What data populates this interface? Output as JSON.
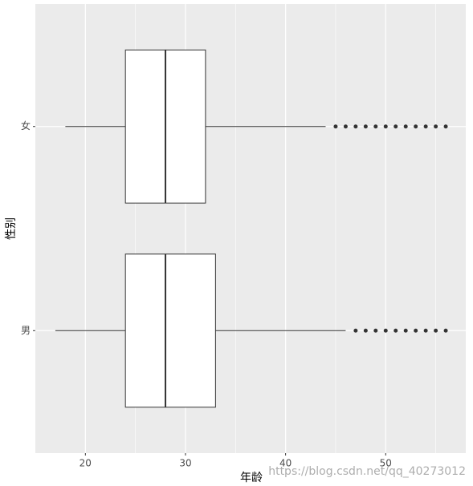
{
  "chart_data": {
    "type": "boxplot",
    "orientation": "horizontal",
    "x_label": "年龄",
    "y_label": "性别",
    "categories": [
      "女",
      "男"
    ],
    "boxes": [
      {
        "whisker_low": 18,
        "q1": 24,
        "median": 28,
        "q3": 32,
        "whisker_high": 44,
        "outliers": [
          45,
          46,
          47,
          48,
          49,
          50,
          51,
          52,
          53,
          54,
          55,
          56
        ]
      },
      {
        "whisker_low": 17,
        "q1": 24,
        "median": 28,
        "q3": 33,
        "whisker_high": 46,
        "outliers": [
          47,
          48,
          49,
          50,
          51,
          52,
          53,
          54,
          55,
          56
        ]
      }
    ],
    "color": "#333333",
    "box_fill": "#ffffff",
    "panel_color": "#ebebeb",
    "xlim": [
      15,
      58
    ],
    "xticks": [
      20,
      30,
      40,
      50
    ],
    "xminor": [
      25,
      35,
      45,
      55
    ],
    "grid": true,
    "watermark": "https://blog.csdn.net/qq_40273012"
  }
}
